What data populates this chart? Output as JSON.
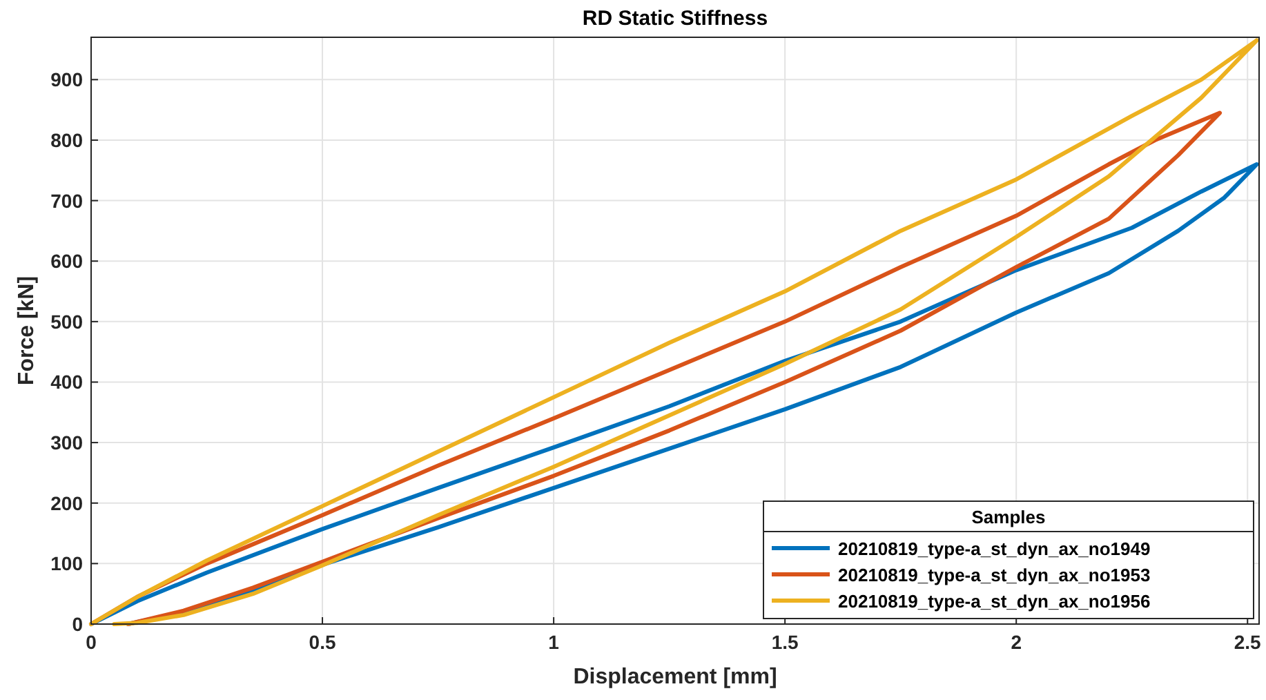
{
  "chart_data": {
    "type": "line",
    "title": "RD Static Stiffness",
    "xlabel": "Displacement [mm]",
    "ylabel": "Force [kN]",
    "legend_title": "Samples",
    "legend": "bottom right",
    "grid": true,
    "xlim": [
      0,
      2.525
    ],
    "ylim": [
      0,
      970
    ],
    "xticks": [
      0,
      0.5,
      1,
      1.5,
      2,
      2.5
    ],
    "yticks": [
      0,
      100,
      200,
      300,
      400,
      500,
      600,
      700,
      800,
      900
    ],
    "series": [
      {
        "name": "20210819_type-a_st_dyn_ax_no1949",
        "color": "#0072bd",
        "x": [
          0.08,
          0.2,
          0.35,
          0.5,
          0.75,
          1.0,
          1.25,
          1.5,
          1.75,
          2.0,
          2.2,
          2.35,
          2.45,
          2.52,
          2.4,
          2.25,
          2.0,
          1.75,
          1.5,
          1.25,
          1.0,
          0.75,
          0.5,
          0.25,
          0.1,
          0
        ],
        "values": [
          0,
          20,
          55,
          98,
          160,
          225,
          290,
          355,
          425,
          515,
          580,
          650,
          705,
          760,
          715,
          655,
          585,
          500,
          435,
          360,
          292,
          225,
          157,
          85,
          38,
          0
        ]
      },
      {
        "name": "20210819_type-a_st_dyn_ax_no1953",
        "color": "#d95319",
        "x": [
          0.08,
          0.2,
          0.35,
          0.5,
          0.75,
          1.0,
          1.25,
          1.5,
          1.75,
          2.0,
          2.2,
          2.35,
          2.44,
          2.3,
          2.2,
          2.0,
          1.75,
          1.5,
          1.25,
          1.0,
          0.75,
          0.5,
          0.25,
          0.1,
          0
        ],
        "values": [
          0,
          22,
          60,
          103,
          175,
          245,
          320,
          400,
          485,
          590,
          670,
          775,
          845,
          800,
          760,
          675,
          590,
          500,
          420,
          340,
          262,
          180,
          100,
          45,
          0
        ]
      },
      {
        "name": "20210819_type-a_st_dyn_ax_no1956",
        "color": "#edb120",
        "x": [
          0.05,
          0.1,
          0.2,
          0.35,
          0.5,
          0.75,
          1.0,
          1.25,
          1.5,
          1.75,
          2.0,
          2.2,
          2.4,
          2.52,
          2.4,
          2.25,
          2.0,
          1.75,
          1.5,
          1.25,
          1.0,
          0.75,
          0.5,
          0.25,
          0.1,
          0
        ],
        "values": [
          0,
          2,
          15,
          50,
          97,
          180,
          260,
          345,
          430,
          520,
          640,
          740,
          870,
          965,
          900,
          840,
          735,
          650,
          550,
          465,
          375,
          285,
          195,
          105,
          45,
          0
        ]
      }
    ]
  }
}
